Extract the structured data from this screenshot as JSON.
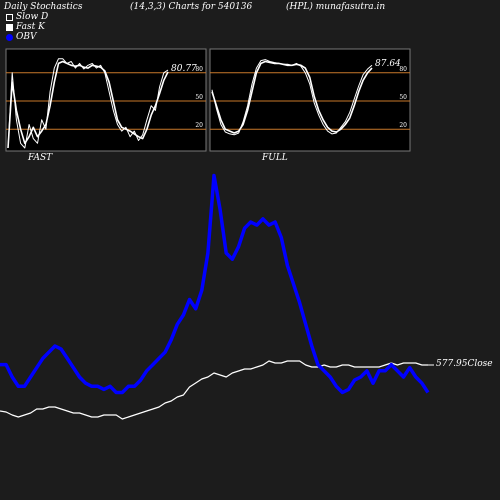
{
  "header": {
    "title": "Daily Stochastics",
    "params": "(14,3,3) Charts for 540136",
    "ticker": "(HPL) munafasutra.in"
  },
  "legend": [
    {
      "label": "Slow  D",
      "swatch": "hollow"
    },
    {
      "label": "Fast K",
      "swatch": "solid"
    },
    {
      "label": "OBV",
      "swatch": "blue"
    }
  ],
  "colors": {
    "background": "#1c1c1c",
    "obv": "#0000ff",
    "price": "#ffffff",
    "band": "#c8782a",
    "panel_bg": "#000000"
  },
  "chart_data": [
    {
      "type": "line",
      "name": "stochastic-fast",
      "label": "FAST",
      "ylim": [
        0,
        100
      ],
      "y_ticks": [
        20,
        50,
        80
      ],
      "bands": [
        20,
        50,
        80
      ],
      "last_value": "80.77",
      "series": [
        {
          "name": "Slow  D",
          "values": [
            0,
            70,
            40,
            20,
            5,
            12,
            22,
            12,
            18,
            25,
            45,
            70,
            90,
            92,
            90,
            88,
            87,
            88,
            86,
            85,
            88,
            87,
            86,
            82,
            70,
            50,
            30,
            22,
            20,
            18,
            15,
            12,
            10,
            20,
            35,
            45,
            58,
            72,
            81
          ]
        },
        {
          "name": "Fast K",
          "values": [
            0,
            80,
            30,
            5,
            0,
            25,
            10,
            5,
            30,
            20,
            60,
            85,
            95,
            95,
            90,
            92,
            85,
            90,
            84,
            88,
            90,
            85,
            88,
            80,
            60,
            40,
            25,
            18,
            22,
            12,
            18,
            8,
            14,
            30,
            45,
            40,
            65,
            80,
            83
          ]
        }
      ]
    },
    {
      "type": "line",
      "name": "stochastic-full",
      "label": "FULL",
      "ylim": [
        0,
        100
      ],
      "y_ticks": [
        20,
        50,
        80
      ],
      "bands": [
        20,
        50,
        80
      ],
      "last_value": "87.64",
      "series": [
        {
          "name": "Slow  D",
          "values": [
            60,
            45,
            30,
            20,
            18,
            16,
            18,
            25,
            40,
            60,
            80,
            90,
            92,
            91,
            90,
            90,
            89,
            88,
            88,
            89,
            88,
            85,
            75,
            55,
            40,
            30,
            22,
            18,
            17,
            20,
            25,
            32,
            45,
            60,
            72,
            80,
            85
          ]
        },
        {
          "name": "Fast K",
          "values": [
            62,
            42,
            25,
            17,
            15,
            14,
            16,
            28,
            45,
            68,
            85,
            93,
            94,
            92,
            91,
            90,
            89,
            89,
            88,
            90,
            87,
            80,
            68,
            48,
            35,
            25,
            18,
            15,
            16,
            22,
            28,
            38,
            52,
            66,
            78,
            84,
            88
          ]
        }
      ]
    },
    {
      "type": "line",
      "name": "obv-price",
      "close_label": "577.95",
      "close_suffix": "Close",
      "series": [
        {
          "name": "OBV",
          "values": [
            34,
            34,
            30,
            27,
            27,
            30,
            33,
            36,
            38,
            40,
            39,
            36,
            33,
            30,
            28,
            27,
            27,
            26,
            27,
            25,
            25,
            27,
            27,
            29,
            32,
            34,
            36,
            38,
            42,
            47,
            50,
            55,
            52,
            58,
            70,
            95,
            84,
            70,
            68,
            72,
            78,
            80,
            79,
            81,
            79,
            80,
            75,
            66,
            60,
            54,
            47,
            40,
            34,
            32,
            30,
            27,
            25,
            26,
            29,
            30,
            32,
            28,
            32,
            32,
            34,
            32,
            30,
            33,
            30,
            28,
            25
          ]
        },
        {
          "name": "Price",
          "values": [
            2,
            1.5,
            0,
            -1,
            0,
            1,
            3,
            3,
            4,
            4,
            3,
            2,
            1,
            1,
            0,
            -1,
            -1,
            0,
            0,
            0,
            -2,
            -1,
            0,
            1,
            2,
            3,
            4,
            6,
            7,
            9,
            10,
            14,
            16,
            18,
            19,
            21,
            20,
            19,
            21,
            22,
            23,
            23,
            24,
            25,
            27,
            26,
            26,
            27,
            27,
            27,
            25,
            24,
            24,
            25,
            24,
            24,
            25,
            25,
            24,
            24,
            24,
            24,
            24,
            25,
            26,
            25,
            26,
            26,
            26,
            25,
            25
          ]
        }
      ]
    }
  ]
}
